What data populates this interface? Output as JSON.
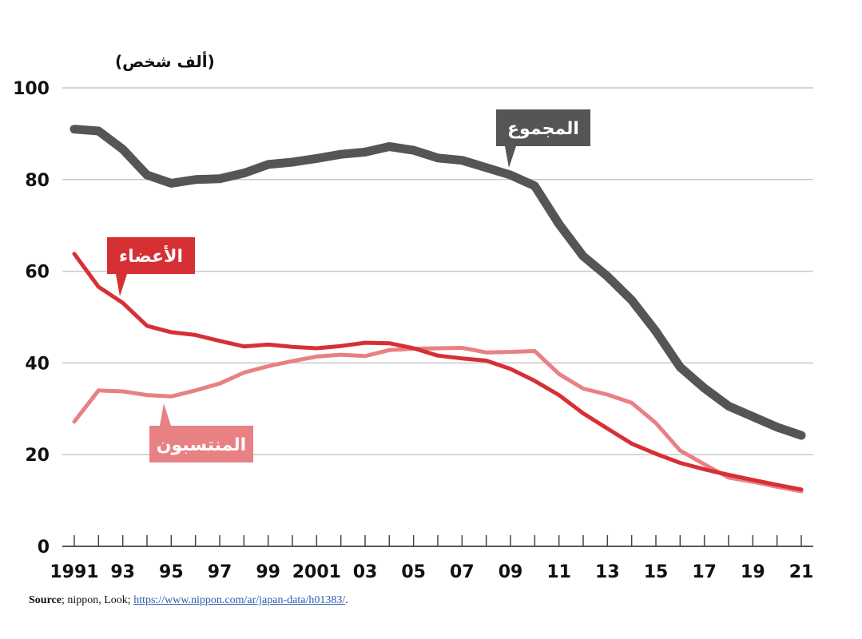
{
  "chart_data": {
    "type": "line",
    "unit_label": "(ألف شخص)",
    "ylim": [
      0,
      100
    ],
    "yticks": [
      0,
      20,
      40,
      60,
      80,
      100
    ],
    "x": [
      1991,
      1992,
      1993,
      1994,
      1995,
      1996,
      1997,
      1998,
      1999,
      2000,
      2001,
      2002,
      2003,
      2004,
      2005,
      2006,
      2007,
      2008,
      2009,
      2010,
      2011,
      2012,
      2013,
      2014,
      2015,
      2016,
      2017,
      2018,
      2019,
      2020,
      2021
    ],
    "xticks": [
      {
        "x": 1991,
        "label": "1991"
      },
      {
        "x": 1993,
        "label": "93"
      },
      {
        "x": 1995,
        "label": "95"
      },
      {
        "x": 1997,
        "label": "97"
      },
      {
        "x": 1999,
        "label": "99"
      },
      {
        "x": 2001,
        "label": "2001"
      },
      {
        "x": 2003,
        "label": "03"
      },
      {
        "x": 2005,
        "label": "05"
      },
      {
        "x": 2007,
        "label": "07"
      },
      {
        "x": 2009,
        "label": "09"
      },
      {
        "x": 2011,
        "label": "11"
      },
      {
        "x": 2013,
        "label": "13"
      },
      {
        "x": 2015,
        "label": "15"
      },
      {
        "x": 2017,
        "label": "17"
      },
      {
        "x": 2019,
        "label": "19"
      },
      {
        "x": 2021,
        "label": "21"
      }
    ],
    "grid": true,
    "series": [
      {
        "name": "المجموع",
        "color": "#555555",
        "values": [
          91.0,
          90.6,
          86.6,
          81.0,
          79.2,
          80.0,
          80.2,
          81.4,
          83.3,
          83.8,
          84.6,
          85.5,
          86.0,
          87.2,
          86.4,
          84.7,
          84.2,
          82.6,
          81.0,
          78.6,
          70.3,
          63.3,
          58.9,
          53.7,
          46.9,
          39.1,
          34.5,
          30.6,
          28.3,
          26.0,
          24.2
        ]
      },
      {
        "name": "الأعضاء",
        "color": "#d63035",
        "values": [
          63.8,
          56.6,
          53.1,
          48.1,
          46.7,
          46.1,
          44.8,
          43.6,
          44.0,
          43.5,
          43.2,
          43.7,
          44.4,
          44.3,
          43.2,
          41.6,
          41.0,
          40.5,
          38.7,
          36.1,
          33.0,
          29.0,
          25.7,
          22.4,
          20.2,
          18.2,
          16.8,
          15.6,
          14.5,
          13.4,
          12.4
        ]
      },
      {
        "name": "المنتسبون",
        "color": "#e88183",
        "values": [
          27.2,
          34.0,
          33.8,
          33.0,
          32.7,
          34.0,
          35.5,
          37.9,
          39.3,
          40.4,
          41.4,
          41.8,
          41.5,
          42.8,
          43.1,
          43.2,
          43.3,
          42.3,
          42.4,
          42.6,
          37.6,
          34.4,
          33.1,
          31.3,
          26.9,
          20.9,
          17.9,
          15.0,
          14.1,
          13.0,
          12.0
        ]
      }
    ]
  },
  "source": {
    "label": "Source",
    "text": "; nippon, Look; ",
    "link": "https://www.nippon.com/ar/japan-data/h01383/",
    "end": "."
  }
}
